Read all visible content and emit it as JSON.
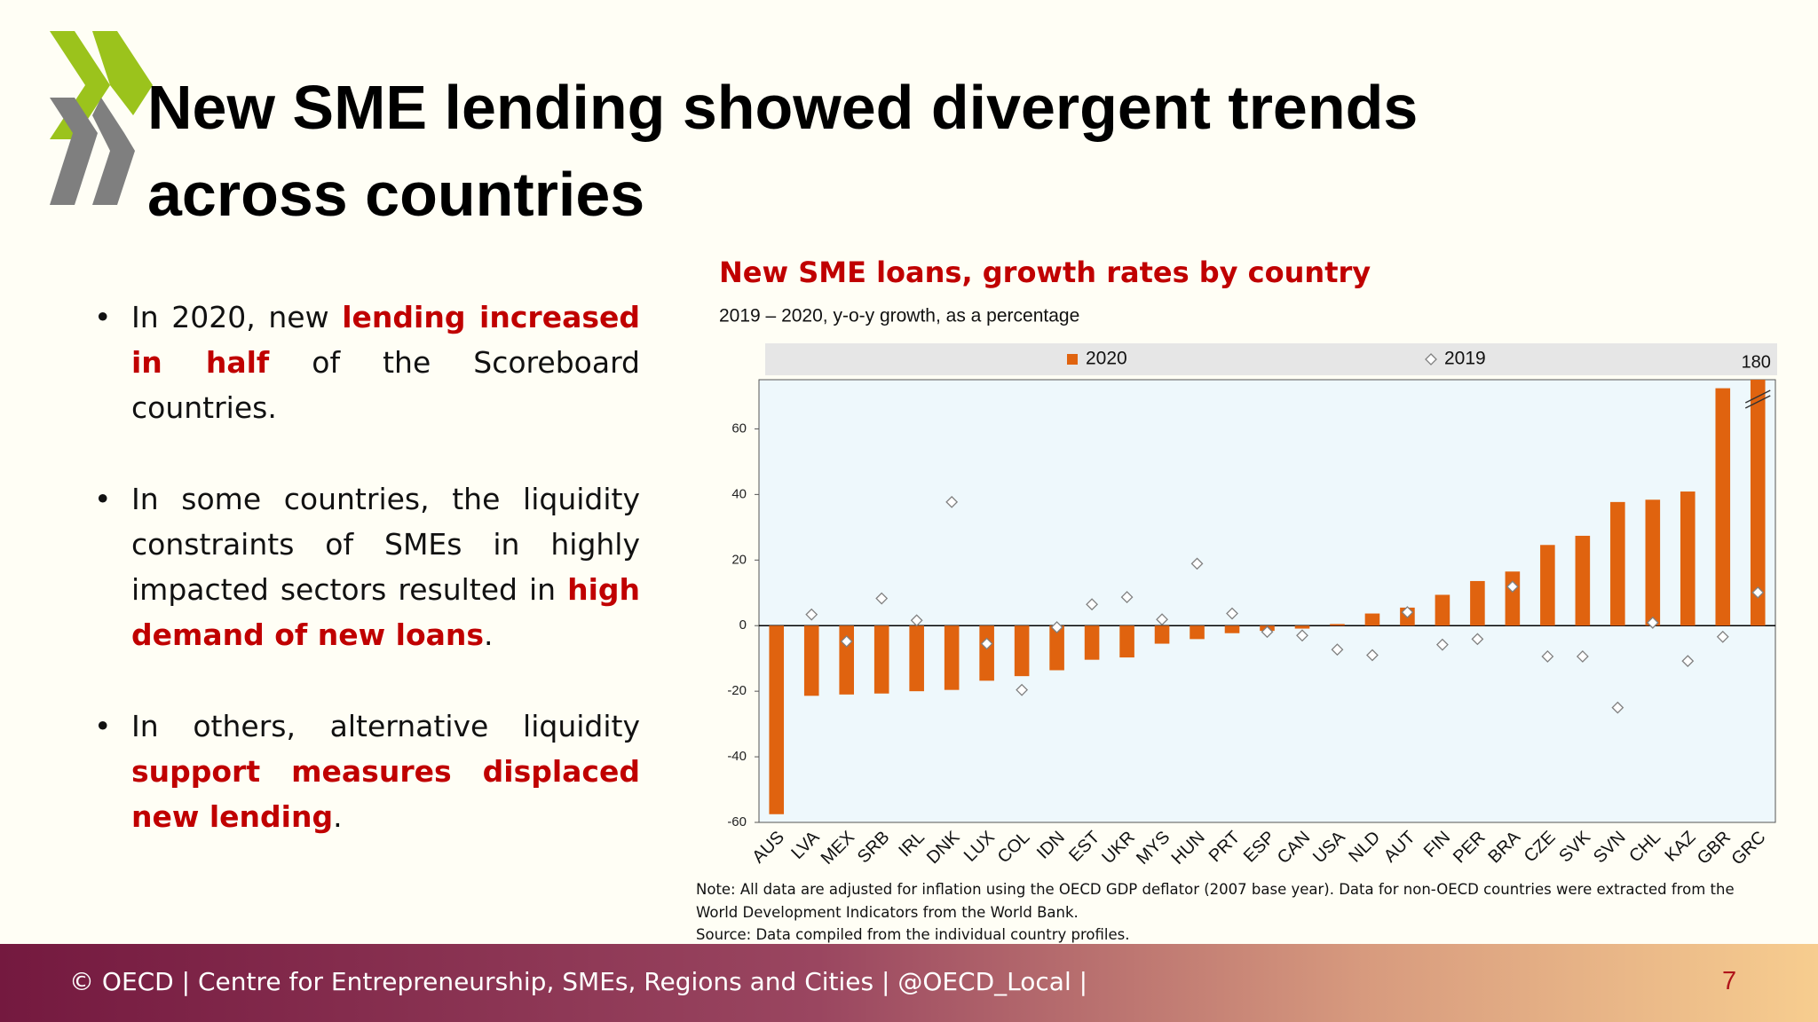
{
  "title": "New SME lending showed divergent trends across countries",
  "bullets": [
    [
      {
        "text": "In 2020, new "
      },
      {
        "text": "lending increased in half",
        "emphasis": true
      },
      {
        "text": " of the Scoreboard countries."
      }
    ],
    [
      {
        "text": "In some countries, the liquidity constraints of SMEs in highly impacted sectors resulted in "
      },
      {
        "text": "high demand of new loans",
        "emphasis": true
      },
      {
        "text": "."
      }
    ],
    [
      {
        "text": "In others, alternative liquidity "
      },
      {
        "text": "support measures displaced new lending",
        "emphasis": true
      },
      {
        "text": "."
      }
    ]
  ],
  "chart_data": {
    "type": "bar",
    "title": "New SME loans, growth rates by country",
    "subtitle": "2019 – 2020, y-o-y growth, as a percentage",
    "categories": [
      "AUS",
      "LVA",
      "MEX",
      "SRB",
      "IRL",
      "DNK",
      "LUX",
      "COL",
      "IDN",
      "EST",
      "UKR",
      "MYS",
      "HUN",
      "PRT",
      "ESP",
      "CAN",
      "USA",
      "NLD",
      "AUT",
      "FIN",
      "PER",
      "BRA",
      "CZE",
      "SVK",
      "SVN",
      "CHL",
      "KAZ",
      "GBR",
      "GRC"
    ],
    "series": [
      {
        "name": "2020",
        "kind": "bar",
        "color": "#e0630f",
        "values": [
          -57.5,
          -21.4,
          -21,
          -20.7,
          -20,
          -19.6,
          -16.8,
          -15.4,
          -13.6,
          -10.4,
          -9.7,
          -5.5,
          -4.1,
          -2.3,
          -1.6,
          -0.9,
          0.5,
          3.7,
          5.5,
          9.4,
          13.6,
          16.5,
          24.6,
          27.4,
          37.7,
          38.4,
          40.9,
          72.4,
          180
        ],
        "value_labels": [
          null,
          null,
          null,
          null,
          null,
          null,
          null,
          null,
          null,
          null,
          null,
          null,
          null,
          null,
          null,
          null,
          null,
          null,
          null,
          null,
          null,
          null,
          null,
          null,
          null,
          null,
          null,
          null,
          "180"
        ]
      },
      {
        "name": "2019",
        "kind": "diamond",
        "color": "#808080",
        "values": [
          null,
          3.4,
          -4.8,
          8.3,
          1.6,
          37.7,
          -5.5,
          -19.6,
          -0.5,
          6.5,
          8.7,
          1.9,
          18.9,
          3.7,
          -1.9,
          -3,
          -7.3,
          -9,
          4.1,
          -5.8,
          -4.1,
          11.9,
          -9.4,
          -9.4,
          -25,
          0.9,
          -10.8,
          -3.4,
          10.1
        ]
      }
    ],
    "ylim": [
      -60,
      75
    ],
    "yticks": [
      -60,
      -40,
      -20,
      0,
      20,
      40,
      60
    ],
    "grid": false,
    "note": "Note: All data are adjusted for inflation using the OECD GDP deflator (2007 base year). Data for non-OECD countries were extracted from the World Development Indicators from the World Bank.",
    "source": "Source: Data compiled from the individual country profiles."
  },
  "footer": "© OECD | Centre for Entrepreneurship, SMEs, Regions and Cities | @OECD_Local |",
  "page_number": 7
}
